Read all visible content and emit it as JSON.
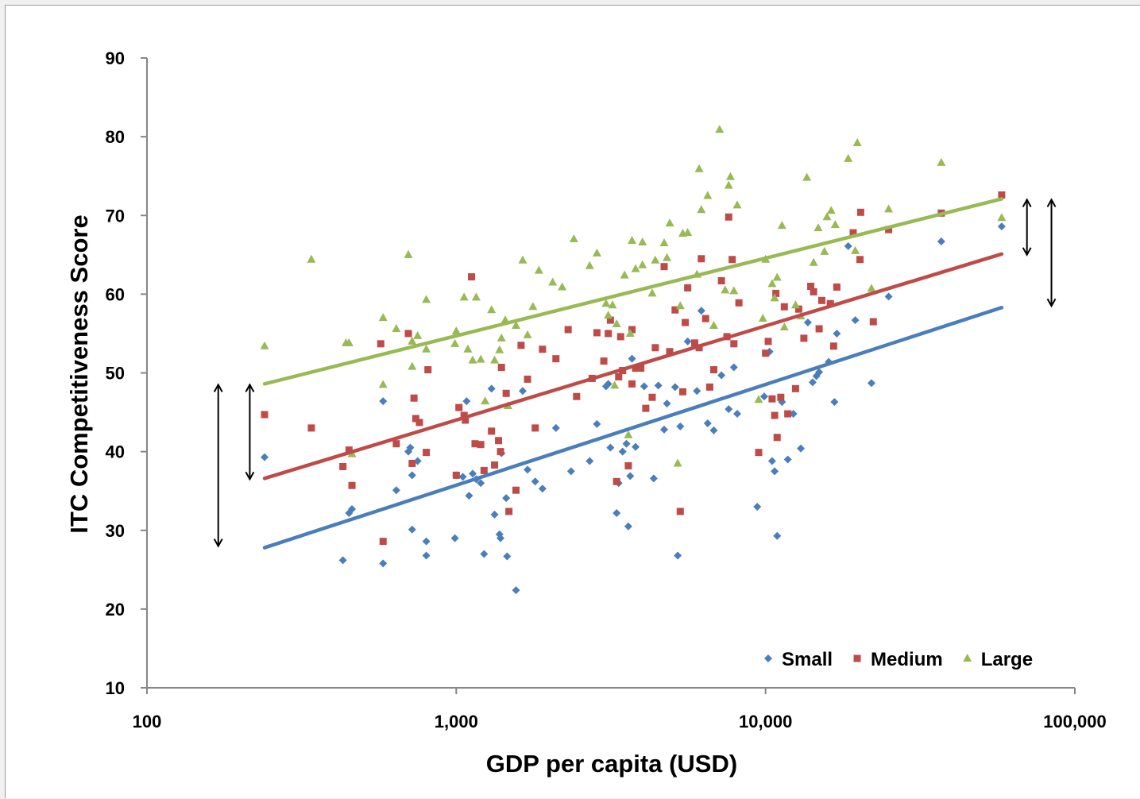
{
  "chart_data": {
    "type": "scatter",
    "xscale": "log",
    "xlim": [
      100,
      100000
    ],
    "ylim": [
      10,
      90
    ],
    "xlabel": "GDP per capita (USD)",
    "ylabel": "ITC Competitiveness Score",
    "xticks": [
      100,
      1000,
      10000,
      100000
    ],
    "xtick_labels": [
      "100",
      "1,000",
      "10,000",
      "100,000"
    ],
    "yticks": [
      10,
      20,
      30,
      40,
      50,
      60,
      70,
      80,
      90
    ],
    "ytick_labels": [
      "10",
      "20",
      "30",
      "40",
      "50",
      "60",
      "70",
      "80",
      "90"
    ],
    "legend_position": "bottom-right",
    "grid": false,
    "series": [
      {
        "name": "Small",
        "color": "#4a7ebb",
        "marker": "diamond",
        "trend": [
          [
            240,
            27.8
          ],
          [
            58000,
            58.3
          ]
        ],
        "points": [
          [
            240,
            39.3
          ],
          [
            430,
            26.2
          ],
          [
            450,
            32.2
          ],
          [
            460,
            32.7
          ],
          [
            580,
            46.4
          ],
          [
            580,
            25.8
          ],
          [
            640,
            35.1
          ],
          [
            700,
            40.0
          ],
          [
            710,
            40.5
          ],
          [
            720,
            37.0
          ],
          [
            720,
            30.1
          ],
          [
            750,
            38.8
          ],
          [
            800,
            28.6
          ],
          [
            800,
            26.8
          ],
          [
            990,
            29.0
          ],
          [
            1000,
            37.0
          ],
          [
            1050,
            36.8
          ],
          [
            1080,
            46.4
          ],
          [
            1100,
            34.4
          ],
          [
            1130,
            37.2
          ],
          [
            1160,
            36.5
          ],
          [
            1200,
            36.0
          ],
          [
            1230,
            27.0
          ],
          [
            1300,
            48.0
          ],
          [
            1330,
            32.0
          ],
          [
            1380,
            29.5
          ],
          [
            1390,
            29.0
          ],
          [
            1400,
            39.8
          ],
          [
            1450,
            34.1
          ],
          [
            1460,
            26.7
          ],
          [
            1560,
            22.4
          ],
          [
            1640,
            47.7
          ],
          [
            1700,
            37.7
          ],
          [
            1800,
            36.2
          ],
          [
            1900,
            35.3
          ],
          [
            2100,
            43.0
          ],
          [
            2350,
            37.5
          ],
          [
            2700,
            38.8
          ],
          [
            2850,
            43.5
          ],
          [
            3050,
            48.3
          ],
          [
            3100,
            48.6
          ],
          [
            3150,
            40.5
          ],
          [
            3300,
            32.2
          ],
          [
            3350,
            36.0
          ],
          [
            3450,
            40.0
          ],
          [
            3550,
            41.0
          ],
          [
            3600,
            30.5
          ],
          [
            3650,
            36.9
          ],
          [
            3700,
            51.8
          ],
          [
            3800,
            40.6
          ],
          [
            4050,
            48.3
          ],
          [
            4350,
            36.6
          ],
          [
            4500,
            48.4
          ],
          [
            4800,
            46.1
          ],
          [
            4700,
            42.8
          ],
          [
            5100,
            48.2
          ],
          [
            5200,
            26.8
          ],
          [
            5300,
            43.2
          ],
          [
            5600,
            54.0
          ],
          [
            6000,
            47.7
          ],
          [
            6200,
            57.9
          ],
          [
            6500,
            43.6
          ],
          [
            6800,
            42.7
          ],
          [
            7200,
            49.7
          ],
          [
            7600,
            45.4
          ],
          [
            7900,
            50.7
          ],
          [
            8100,
            44.8
          ],
          [
            9400,
            33.0
          ],
          [
            9900,
            47.0
          ],
          [
            10300,
            52.7
          ],
          [
            10500,
            38.8
          ],
          [
            10700,
            37.5
          ],
          [
            10900,
            29.3
          ],
          [
            11300,
            46.3
          ],
          [
            11800,
            39.0
          ],
          [
            12300,
            44.8
          ],
          [
            13000,
            40.4
          ],
          [
            13700,
            56.4
          ],
          [
            14200,
            48.8
          ],
          [
            14600,
            49.6
          ],
          [
            14900,
            50.1
          ],
          [
            16000,
            51.4
          ],
          [
            16700,
            46.3
          ],
          [
            17000,
            55.0
          ],
          [
            18500,
            66.1
          ],
          [
            19500,
            56.7
          ],
          [
            22000,
            48.7
          ],
          [
            25000,
            59.7
          ],
          [
            37000,
            66.7
          ],
          [
            58000,
            68.6
          ]
        ]
      },
      {
        "name": "Medium",
        "color": "#be4b48",
        "marker": "square",
        "trend": [
          [
            240,
            36.6
          ],
          [
            58000,
            65.1
          ]
        ],
        "points": [
          [
            240,
            44.7
          ],
          [
            340,
            43.0
          ],
          [
            430,
            38.1
          ],
          [
            450,
            40.2
          ],
          [
            460,
            35.7
          ],
          [
            570,
            53.7
          ],
          [
            580,
            28.6
          ],
          [
            640,
            41.0
          ],
          [
            700,
            55.0
          ],
          [
            720,
            38.5
          ],
          [
            730,
            46.8
          ],
          [
            740,
            44.2
          ],
          [
            760,
            43.7
          ],
          [
            800,
            39.9
          ],
          [
            810,
            50.4
          ],
          [
            1000,
            37.0
          ],
          [
            1020,
            45.6
          ],
          [
            1060,
            44.6
          ],
          [
            1070,
            44.0
          ],
          [
            1120,
            62.2
          ],
          [
            1150,
            41.0
          ],
          [
            1200,
            40.9
          ],
          [
            1230,
            37.6
          ],
          [
            1300,
            42.6
          ],
          [
            1330,
            38.3
          ],
          [
            1370,
            41.4
          ],
          [
            1390,
            40.0
          ],
          [
            1400,
            50.7
          ],
          [
            1450,
            47.4
          ],
          [
            1480,
            32.4
          ],
          [
            1560,
            35.1
          ],
          [
            1620,
            53.5
          ],
          [
            1700,
            49.2
          ],
          [
            1800,
            43.0
          ],
          [
            1900,
            53.0
          ],
          [
            2100,
            51.8
          ],
          [
            2300,
            55.5
          ],
          [
            2450,
            47.0
          ],
          [
            2750,
            49.3
          ],
          [
            2850,
            55.1
          ],
          [
            3000,
            51.5
          ],
          [
            3100,
            55.0
          ],
          [
            3150,
            56.7
          ],
          [
            3300,
            36.2
          ],
          [
            3350,
            49.5
          ],
          [
            3400,
            54.6
          ],
          [
            3450,
            50.3
          ],
          [
            3600,
            38.2
          ],
          [
            3700,
            55.5
          ],
          [
            3700,
            48.6
          ],
          [
            3800,
            50.6
          ],
          [
            3950,
            50.6
          ],
          [
            4100,
            45.5
          ],
          [
            4300,
            46.9
          ],
          [
            4400,
            53.2
          ],
          [
            4700,
            63.5
          ],
          [
            4900,
            52.7
          ],
          [
            5100,
            58.0
          ],
          [
            5300,
            32.4
          ],
          [
            5400,
            47.6
          ],
          [
            5500,
            56.4
          ],
          [
            5600,
            60.8
          ],
          [
            5900,
            53.8
          ],
          [
            6100,
            53.2
          ],
          [
            6200,
            64.5
          ],
          [
            6400,
            56.9
          ],
          [
            6600,
            48.2
          ],
          [
            6800,
            50.4
          ],
          [
            7200,
            61.7
          ],
          [
            7500,
            54.6
          ],
          [
            7600,
            69.8
          ],
          [
            7800,
            64.4
          ],
          [
            7900,
            53.7
          ],
          [
            8200,
            58.9
          ],
          [
            9500,
            39.9
          ],
          [
            10000,
            52.5
          ],
          [
            10200,
            54.0
          ],
          [
            10500,
            46.7
          ],
          [
            10700,
            44.6
          ],
          [
            10800,
            60.1
          ],
          [
            10900,
            41.8
          ],
          [
            11200,
            46.9
          ],
          [
            11500,
            58.4
          ],
          [
            11800,
            44.8
          ],
          [
            12500,
            48.0
          ],
          [
            12800,
            58.1
          ],
          [
            13300,
            54.4
          ],
          [
            14000,
            61.0
          ],
          [
            14300,
            60.3
          ],
          [
            14900,
            55.6
          ],
          [
            15200,
            59.2
          ],
          [
            16200,
            58.8
          ],
          [
            16600,
            53.4
          ],
          [
            17000,
            60.9
          ],
          [
            19200,
            67.8
          ],
          [
            20200,
            64.4
          ],
          [
            20300,
            70.4
          ],
          [
            22300,
            56.5
          ],
          [
            25000,
            68.2
          ],
          [
            37000,
            70.3
          ],
          [
            58000,
            72.6
          ]
        ]
      },
      {
        "name": "Large",
        "color": "#98b954",
        "marker": "triangle",
        "trend": [
          [
            240,
            48.6
          ],
          [
            58000,
            72.1
          ]
        ],
        "points": [
          [
            240,
            53.4
          ],
          [
            340,
            64.4
          ],
          [
            440,
            53.8
          ],
          [
            450,
            53.8
          ],
          [
            460,
            39.7
          ],
          [
            580,
            48.5
          ],
          [
            580,
            57.0
          ],
          [
            640,
            55.6
          ],
          [
            700,
            65.0
          ],
          [
            720,
            54.0
          ],
          [
            720,
            50.8
          ],
          [
            750,
            54.7
          ],
          [
            800,
            59.3
          ],
          [
            800,
            53.0
          ],
          [
            990,
            53.7
          ],
          [
            1000,
            55.3
          ],
          [
            1060,
            59.6
          ],
          [
            1090,
            53.0
          ],
          [
            1130,
            51.6
          ],
          [
            1160,
            59.6
          ],
          [
            1200,
            51.7
          ],
          [
            1240,
            46.4
          ],
          [
            1300,
            58.0
          ],
          [
            1330,
            51.6
          ],
          [
            1380,
            52.9
          ],
          [
            1400,
            54.4
          ],
          [
            1440,
            56.7
          ],
          [
            1470,
            45.8
          ],
          [
            1560,
            56.0
          ],
          [
            1640,
            64.3
          ],
          [
            1700,
            54.8
          ],
          [
            1770,
            58.4
          ],
          [
            1850,
            63.0
          ],
          [
            2050,
            61.5
          ],
          [
            2200,
            60.9
          ],
          [
            2400,
            67.0
          ],
          [
            2700,
            63.6
          ],
          [
            2850,
            65.2
          ],
          [
            3050,
            58.8
          ],
          [
            3100,
            57.3
          ],
          [
            3200,
            58.6
          ],
          [
            3250,
            48.4
          ],
          [
            3300,
            56.2
          ],
          [
            3500,
            62.4
          ],
          [
            3600,
            42.1
          ],
          [
            3650,
            55.0
          ],
          [
            3700,
            66.8
          ],
          [
            3800,
            63.2
          ],
          [
            4000,
            63.7
          ],
          [
            4000,
            66.6
          ],
          [
            4300,
            60.1
          ],
          [
            4400,
            64.3
          ],
          [
            4700,
            66.5
          ],
          [
            4800,
            64.6
          ],
          [
            4900,
            69.0
          ],
          [
            5200,
            38.5
          ],
          [
            5300,
            58.5
          ],
          [
            5400,
            67.7
          ],
          [
            5600,
            67.8
          ],
          [
            6000,
            62.5
          ],
          [
            6100,
            75.9
          ],
          [
            6200,
            70.7
          ],
          [
            6500,
            72.5
          ],
          [
            6800,
            56.0
          ],
          [
            7100,
            80.9
          ],
          [
            7400,
            60.5
          ],
          [
            7600,
            73.8
          ],
          [
            7700,
            74.9
          ],
          [
            7900,
            60.4
          ],
          [
            8100,
            71.3
          ],
          [
            9500,
            46.6
          ],
          [
            9800,
            56.9
          ],
          [
            10000,
            64.4
          ],
          [
            10500,
            61.3
          ],
          [
            10700,
            59.5
          ],
          [
            10900,
            62.1
          ],
          [
            11300,
            68.7
          ],
          [
            11500,
            55.8
          ],
          [
            12500,
            58.6
          ],
          [
            13000,
            57.2
          ],
          [
            13600,
            74.8
          ],
          [
            14300,
            64.0
          ],
          [
            14800,
            68.4
          ],
          [
            15500,
            65.4
          ],
          [
            15800,
            69.8
          ],
          [
            16300,
            70.6
          ],
          [
            16800,
            68.8
          ],
          [
            18500,
            77.2
          ],
          [
            19500,
            65.5
          ],
          [
            19800,
            79.2
          ],
          [
            22000,
            60.7
          ],
          [
            25000,
            70.8
          ],
          [
            37000,
            76.7
          ],
          [
            58000,
            69.7
          ]
        ]
      }
    ],
    "annotations": [
      {
        "type": "double-arrow",
        "x": 170,
        "y_from": 48.5,
        "y_to": 28.0
      },
      {
        "type": "double-arrow",
        "x": 215,
        "y_from": 48.5,
        "y_to": 36.5
      },
      {
        "type": "double-arrow",
        "x": 70000,
        "y_from": 72.0,
        "y_to": 65.0
      },
      {
        "type": "double-arrow",
        "x": 84000,
        "y_from": 72.0,
        "y_to": 58.5
      }
    ]
  }
}
